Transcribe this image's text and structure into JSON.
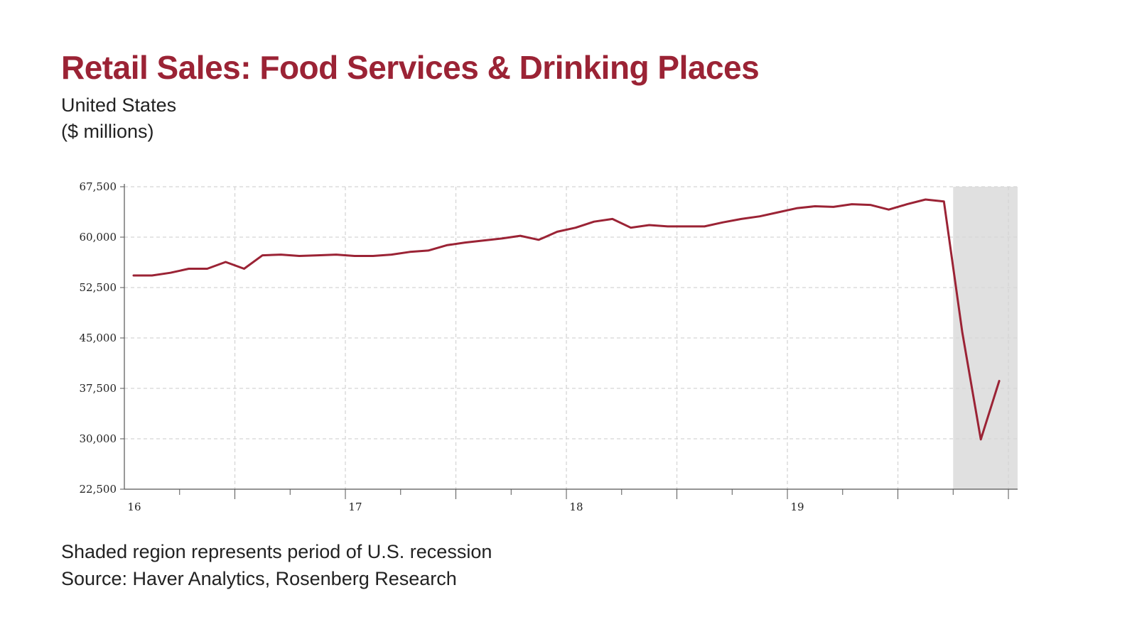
{
  "header": {
    "title": "Retail Sales: Food Services & Drinking Places",
    "subtitle": "United States",
    "units": "($ millions)"
  },
  "footer": {
    "note": "Shaded region represents period of U.S. recession",
    "source": "Source: Haver Analytics, Rosenberg Research"
  },
  "chart_data": {
    "type": "line",
    "title": "Retail Sales: Food Services & Drinking Places",
    "subtitle": "United States",
    "xlabel": "",
    "ylabel": "",
    "grid": true,
    "x_tick_labels": [
      {
        "label": "16",
        "x": 0
      },
      {
        "label": "17",
        "x": 12
      },
      {
        "label": "18",
        "x": 24
      },
      {
        "label": "19",
        "x": 36
      }
    ],
    "y_tick_labels": [
      "67,500",
      "60,000",
      "52,500",
      "45,000",
      "37,500",
      "30,000",
      "22,500"
    ],
    "y_ticks": [
      67500,
      60000,
      52500,
      45000,
      37500,
      30000,
      22500
    ],
    "ylim": [
      22500,
      67500
    ],
    "xlim": [
      -0.5,
      48
    ],
    "colors": {
      "line": "#9b2335",
      "recession": "#e0e0e0",
      "grid": "#d5d5d5",
      "axis": "#555555"
    },
    "recession": {
      "start": 44.5,
      "end": 48
    },
    "series": [
      {
        "values": [
          {
            "x": 0,
            "y": 54300
          },
          {
            "x": 1,
            "y": 54300
          },
          {
            "x": 2,
            "y": 54700
          },
          {
            "x": 3,
            "y": 55300
          },
          {
            "x": 4,
            "y": 55300
          },
          {
            "x": 5,
            "y": 56300
          },
          {
            "x": 6,
            "y": 55300
          },
          {
            "x": 7,
            "y": 57300
          },
          {
            "x": 8,
            "y": 57400
          },
          {
            "x": 9,
            "y": 57200
          },
          {
            "x": 10,
            "y": 57300
          },
          {
            "x": 11,
            "y": 57400
          },
          {
            "x": 12,
            "y": 57200
          },
          {
            "x": 13,
            "y": 57200
          },
          {
            "x": 14,
            "y": 57400
          },
          {
            "x": 15,
            "y": 57800
          },
          {
            "x": 16,
            "y": 58000
          },
          {
            "x": 17,
            "y": 58800
          },
          {
            "x": 18,
            "y": 59200
          },
          {
            "x": 19,
            "y": 59500
          },
          {
            "x": 20,
            "y": 59800
          },
          {
            "x": 21,
            "y": 60200
          },
          {
            "x": 22,
            "y": 59600
          },
          {
            "x": 23,
            "y": 60800
          },
          {
            "x": 24,
            "y": 61400
          },
          {
            "x": 25,
            "y": 62300
          },
          {
            "x": 26,
            "y": 62700
          },
          {
            "x": 27,
            "y": 61400
          },
          {
            "x": 28,
            "y": 61800
          },
          {
            "x": 29,
            "y": 61600
          },
          {
            "x": 30,
            "y": 61600
          },
          {
            "x": 31,
            "y": 61600
          },
          {
            "x": 32,
            "y": 62200
          },
          {
            "x": 33,
            "y": 62700
          },
          {
            "x": 34,
            "y": 63100
          },
          {
            "x": 35,
            "y": 63700
          },
          {
            "x": 36,
            "y": 64300
          },
          {
            "x": 37,
            "y": 64600
          },
          {
            "x": 38,
            "y": 64500
          },
          {
            "x": 39,
            "y": 64900
          },
          {
            "x": 40,
            "y": 64800
          },
          {
            "x": 41,
            "y": 64100
          },
          {
            "x": 42,
            "y": 64900
          },
          {
            "x": 43,
            "y": 65600
          },
          {
            "x": 44,
            "y": 65300
          },
          {
            "x": 45,
            "y": 45800
          },
          {
            "x": 46,
            "y": 29900
          },
          {
            "x": 47,
            "y": 38600
          }
        ]
      }
    ]
  }
}
